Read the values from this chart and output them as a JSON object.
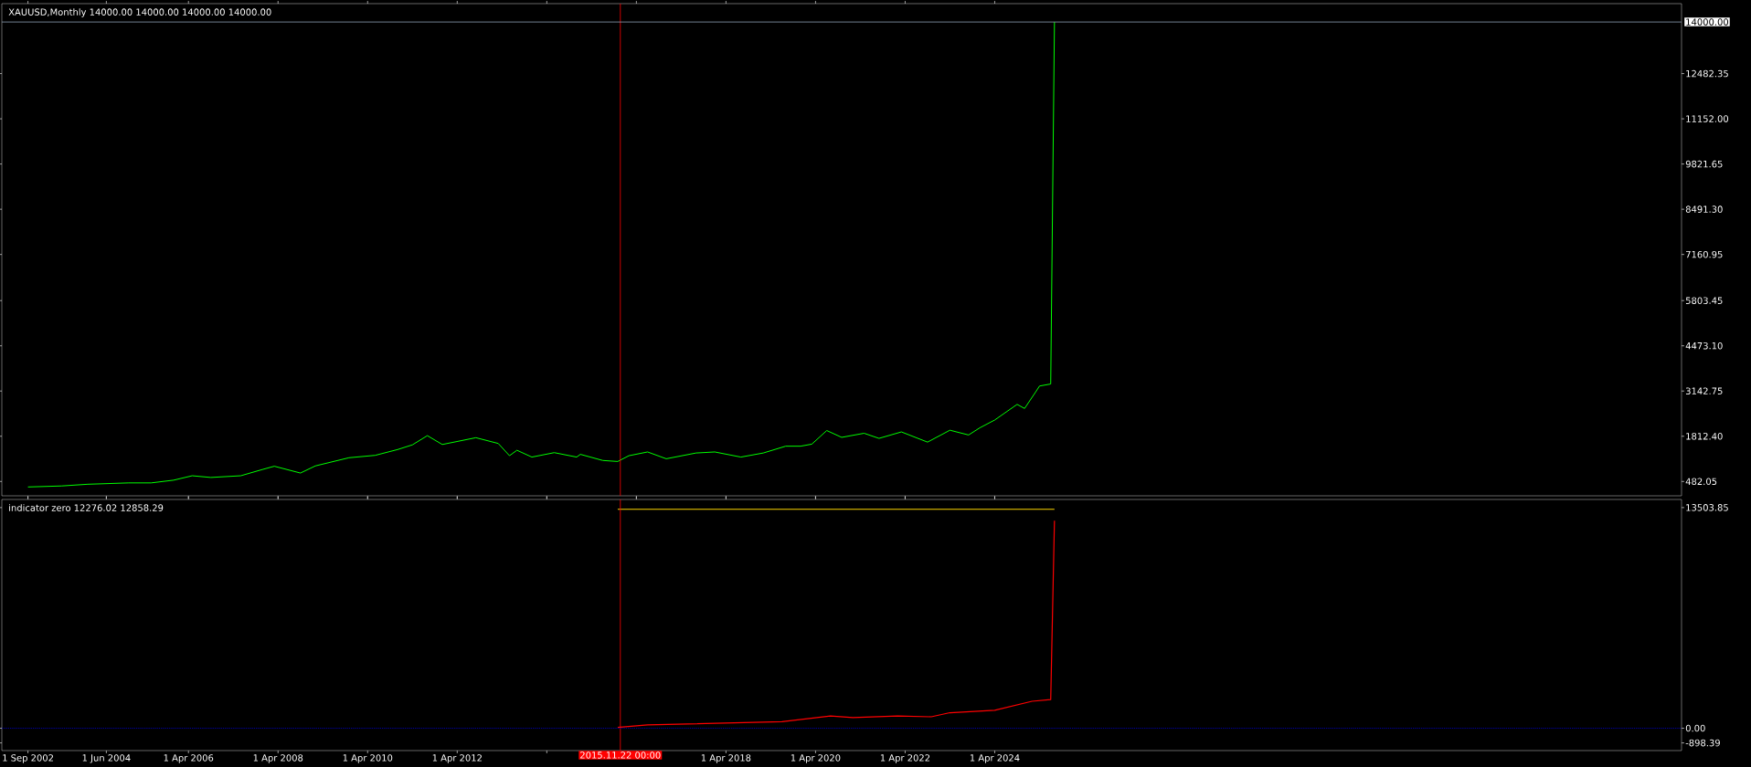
{
  "chart_data": [
    {
      "type": "line",
      "title": "XAUUSD,Monthly  14000.00 14000.00 14000.00 14000.00",
      "tick_labels": "y",
      "series": [
        {
          "color": "#00ff00",
          "x": [
            "2002-09",
            "2003-06",
            "2004-01",
            "2004-12",
            "2005-06",
            "2005-12",
            "2006-05",
            "2006-10",
            "2007-06",
            "2007-12",
            "2008-03",
            "2008-10",
            "2009-02",
            "2009-11",
            "2010-06",
            "2010-12",
            "2011-04",
            "2011-08",
            "2011-12",
            "2012-09",
            "2013-03",
            "2013-06",
            "2013-08",
            "2013-12",
            "2014-06",
            "2014-12",
            "2015-01",
            "2015-07",
            "2015-11",
            "2016-02",
            "2016-07",
            "2016-12",
            "2017-08",
            "2018-01",
            "2018-08",
            "2019-02",
            "2019-08",
            "2019-12",
            "2020-03",
            "2020-07",
            "2020-11",
            "2021-05",
            "2021-09",
            "2022-03",
            "2022-10",
            "2023-04",
            "2023-09",
            "2023-12",
            "2024-04",
            "2024-10",
            "2024-12",
            "2025-03",
            "2025-04",
            "2025-07",
            "2025-08"
          ],
          "values": [
            320,
            350,
            400,
            440,
            440,
            520,
            650,
            600,
            650,
            840,
            930,
            730,
            940,
            1180,
            1250,
            1420,
            1560,
            1830,
            1570,
            1770,
            1600,
            1240,
            1400,
            1200,
            1330,
            1200,
            1280,
            1100,
            1070,
            1240,
            1350,
            1150,
            1320,
            1350,
            1200,
            1320,
            1520,
            1520,
            1580,
            1980,
            1780,
            1900,
            1750,
            1940,
            1640,
            1990,
            1850,
            2060,
            2290,
            2750,
            2630,
            3120,
            3290,
            3350,
            14000
          ]
        }
      ],
      "xlim": [
        "2002-02",
        "2039-08"
      ],
      "xticks": [
        "2002-09",
        "2004-06",
        "2006-04",
        "2008-04",
        "2010-04",
        "2012-04",
        "2014-04",
        "2016-04",
        "2018-04",
        "2020-04",
        "2022-04",
        "2024-04"
      ],
      "ylim": [
        60,
        14540
      ],
      "yticks": [
        {
          "value": 482.05,
          "label": "482.05"
        },
        {
          "value": 1812.4,
          "label": "1812.40"
        },
        {
          "value": 3142.75,
          "label": "3142.75"
        },
        {
          "value": 4473.1,
          "label": "4473.10"
        },
        {
          "value": 5803.45,
          "label": "5803.45"
        },
        {
          "value": 7160.95,
          "label": "7160.95"
        },
        {
          "value": 8491.3,
          "label": "8491.30"
        },
        {
          "value": 9821.65,
          "label": "9821.65"
        },
        {
          "value": 11152,
          "label": "11152.00"
        },
        {
          "value": 12482.35,
          "label": "12482.35"
        }
      ],
      "ref_lines": [
        {
          "axis": "x",
          "value": "2015-11-22",
          "color": "#ff0000"
        },
        {
          "axis": "y",
          "value": 14000,
          "label": "14000.00",
          "color": "#8ca0b4"
        }
      ]
    },
    {
      "type": "line",
      "title": "indicator zero 12276.02 12858.29",
      "series": [
        {
          "color": "#ffd700",
          "x": [
            "2015-11",
            "2025-08"
          ],
          "values": [
            13400,
            13400
          ]
        },
        {
          "color": "#ff0000",
          "x": [
            "2015-11",
            "2016-07",
            "2019-07",
            "2020-08",
            "2021-02",
            "2022-02",
            "2022-11",
            "2023-04",
            "2024-04",
            "2025-02",
            "2025-07",
            "2025-08"
          ],
          "values": [
            50,
            200,
            400,
            750,
            650,
            750,
            700,
            950,
            1100,
            1650,
            1750,
            12700
          ]
        }
      ],
      "xlim": [
        "2002-02",
        "2039-08"
      ],
      "xticks": [
        {
          "value": "2002-09",
          "label": "1 Sep 2002"
        },
        {
          "value": "2004-06",
          "label": "1 Jun 2004"
        },
        {
          "value": "2006-04",
          "label": "1 Apr 2006"
        },
        {
          "value": "2008-04",
          "label": "1 Apr 2008"
        },
        {
          "value": "2010-04",
          "label": "1 Apr 2010"
        },
        {
          "value": "2012-04",
          "label": "1 Apr 2012"
        },
        {
          "value": "2014-04",
          "label": null
        },
        {
          "value": "2016-04",
          "label": null
        },
        {
          "value": "2018-04",
          "label": "1 Apr 2018"
        },
        {
          "value": "2020-04",
          "label": "1 Apr 2020"
        },
        {
          "value": "2022-04",
          "label": "1 Apr 2022"
        },
        {
          "value": "2024-04",
          "label": "1 Apr 2024"
        }
      ],
      "ylim": [
        -1367,
        14000
      ],
      "yticks": [
        {
          "value": 13503.85,
          "label": "13503.85"
        },
        {
          "value": 0,
          "label": "0.00"
        },
        {
          "value": -898.39,
          "label": "-898.39"
        }
      ],
      "ref_lines": [
        {
          "axis": "x",
          "value": "2015-11-22",
          "label": "2015.11.22 00:00",
          "color": "#ff0000"
        },
        {
          "axis": "y",
          "value": 0,
          "color": "#0000ff",
          "line_style": "dotted"
        }
      ]
    }
  ]
}
